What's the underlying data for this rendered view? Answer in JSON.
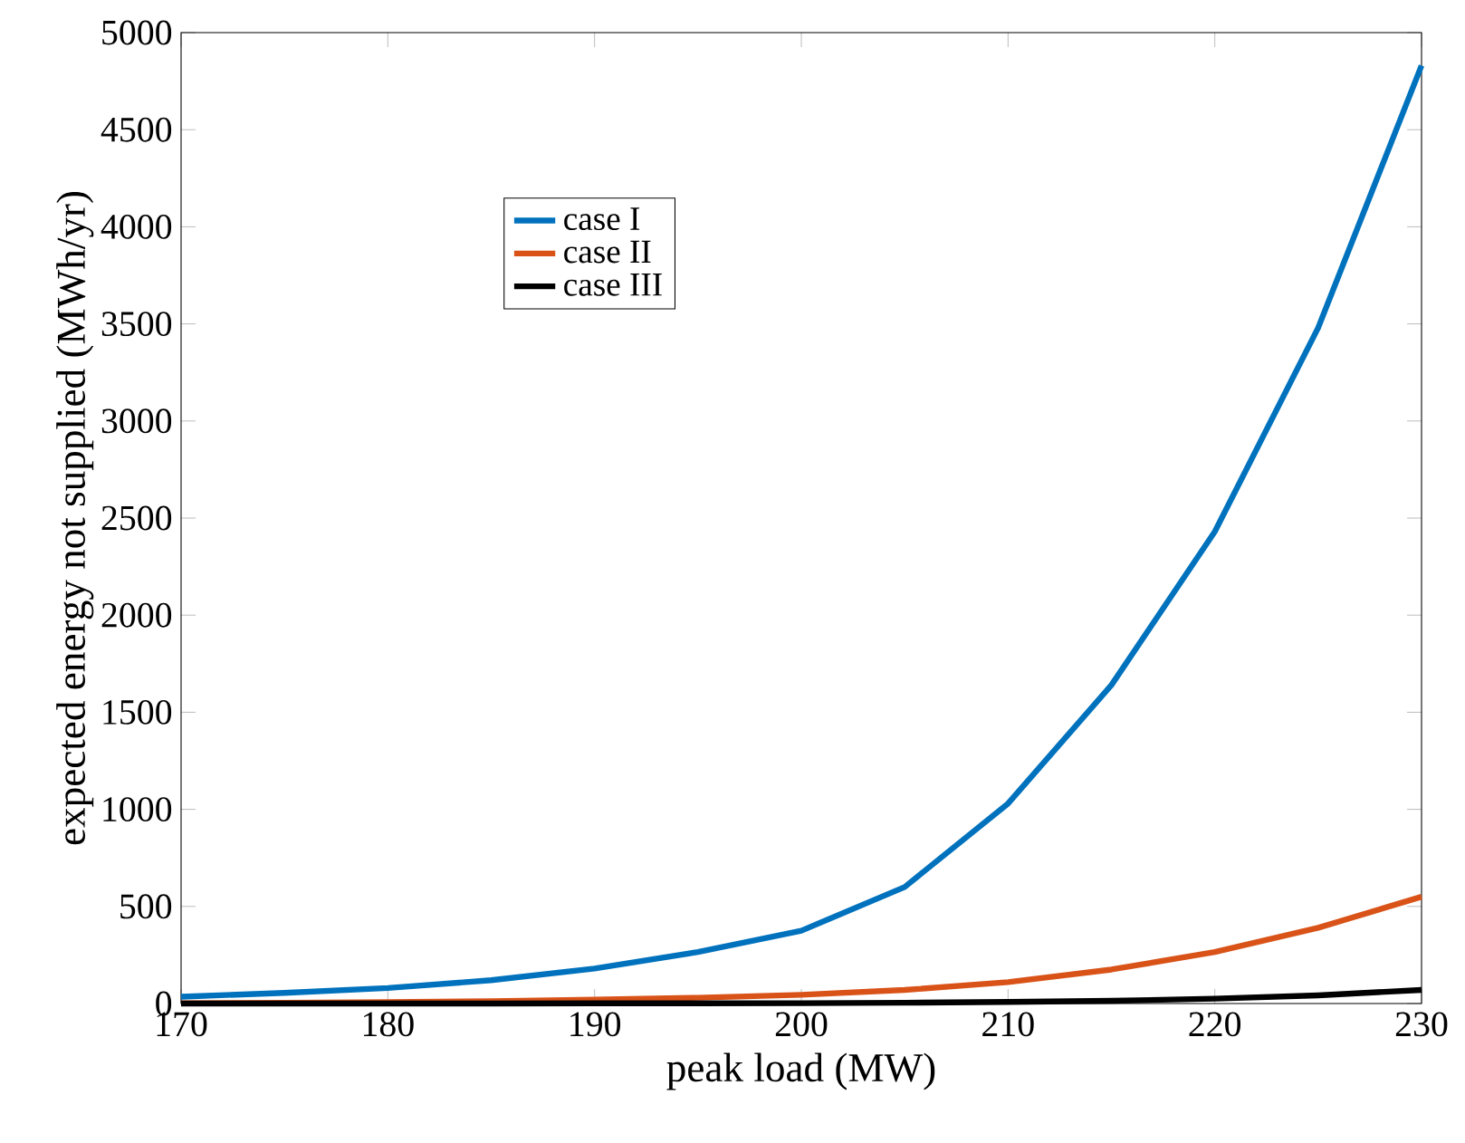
{
  "chart_data": {
    "type": "line",
    "xlabel": "peak load (MW)",
    "ylabel": "expected energy not supplied (MWh/yr)",
    "x": [
      170,
      175,
      180,
      185,
      190,
      195,
      200,
      205,
      210,
      215,
      220,
      225,
      230
    ],
    "series": [
      {
        "name": "case I",
        "color": "#0072bd",
        "values": [
          35,
          55,
          80,
          120,
          180,
          265,
          375,
          600,
          1030,
          1640,
          2430,
          3480,
          4830
        ]
      },
      {
        "name": "case II",
        "color": "#d95319",
        "values": [
          2,
          4,
          7,
          12,
          20,
          30,
          45,
          70,
          110,
          175,
          265,
          390,
          550
        ]
      },
      {
        "name": "case III",
        "color": "#000000",
        "values": [
          0,
          0,
          0,
          0,
          1,
          1,
          2,
          4,
          8,
          14,
          25,
          42,
          70
        ]
      }
    ],
    "xlim": [
      170,
      230
    ],
    "ylim": [
      0,
      5000
    ],
    "xticks": [
      170,
      180,
      190,
      200,
      210,
      220,
      230
    ],
    "yticks": [
      0,
      500,
      1000,
      1500,
      2000,
      2500,
      3000,
      3500,
      4000,
      4500,
      5000
    ],
    "legend": "top left",
    "grid": false,
    "marker": "none",
    "line_style": "solid"
  }
}
